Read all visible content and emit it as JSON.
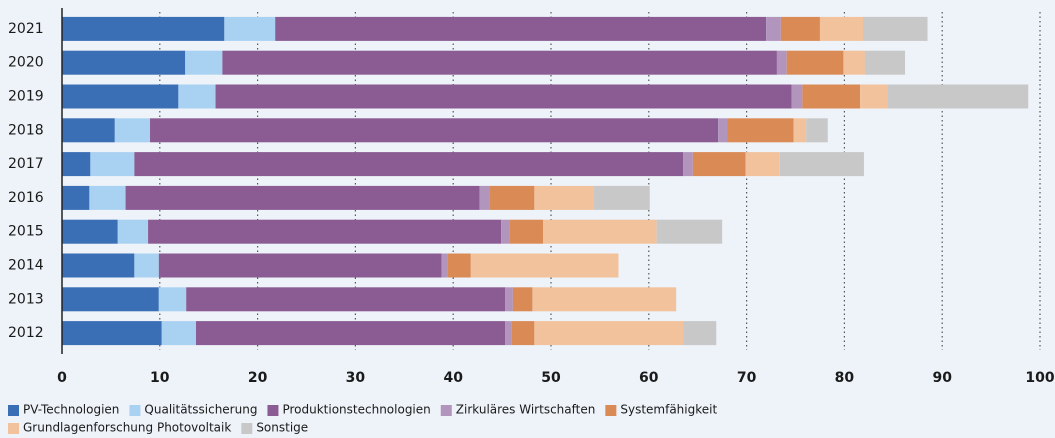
{
  "chart_data": {
    "type": "stacked_bar_horizontal",
    "categories": [
      "2021",
      "2020",
      "2019",
      "2018",
      "2017",
      "2016",
      "2015",
      "2014",
      "2013",
      "2012"
    ],
    "series": [
      {
        "name": "PV-Technologien",
        "color": "#3a6fb5",
        "values": [
          16.6,
          12.6,
          11.9,
          5.4,
          2.9,
          2.8,
          5.7,
          7.4,
          9.9,
          10.2
        ]
      },
      {
        "name": "Qualitätssicherung",
        "color": "#a9d1f1",
        "values": [
          5.2,
          3.8,
          3.8,
          3.6,
          4.5,
          3.7,
          3.1,
          2.5,
          2.8,
          3.5
        ]
      },
      {
        "name": "Produktionstechnologien",
        "color": "#8a5c93",
        "values": [
          50.2,
          56.7,
          58.9,
          58.1,
          56.1,
          36.2,
          36.1,
          28.9,
          32.6,
          31.6
        ]
      },
      {
        "name": "Zirkuläres Wirtschaften",
        "color": "#b195bd",
        "values": [
          1.5,
          1.0,
          1.1,
          0.9,
          1.0,
          1.0,
          0.9,
          0.6,
          0.8,
          0.7
        ]
      },
      {
        "name": "Systemfähigkeit",
        "color": "#d98a55",
        "values": [
          4.0,
          5.8,
          5.9,
          6.8,
          5.4,
          4.6,
          3.4,
          2.4,
          2.0,
          2.3
        ]
      },
      {
        "name": "Grundlagenforschung Photovoltaik",
        "color": "#f2c29c",
        "values": [
          4.4,
          2.2,
          2.8,
          1.3,
          3.5,
          6.1,
          11.6,
          15.1,
          14.7,
          15.2
        ]
      },
      {
        "name": "Sonstige",
        "color": "#c8c8c8",
        "values": [
          6.6,
          4.1,
          14.4,
          2.2,
          8.6,
          5.7,
          6.7,
          0,
          0,
          3.4
        ]
      }
    ],
    "xlim": [
      0,
      100
    ],
    "xticks": [
      0,
      10,
      20,
      30,
      40,
      50,
      60,
      70,
      80,
      90,
      100
    ],
    "grid": true
  }
}
